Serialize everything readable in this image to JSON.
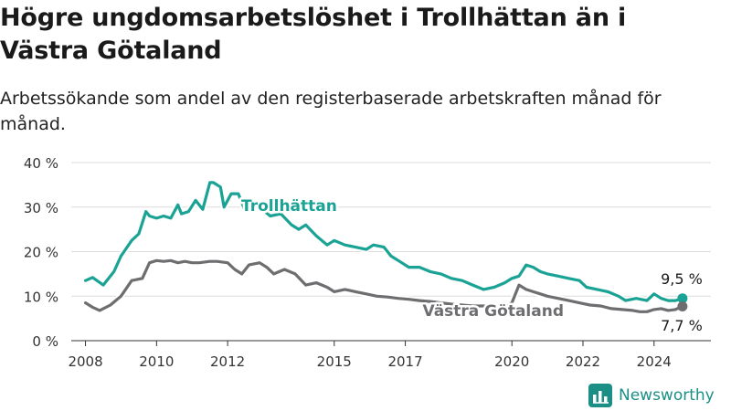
{
  "title": "Högre ungdomsarbetslöshet i Trollhättan än i Västra Götaland",
  "subtitle": "Arbetssökande som andel av den registerbaserade arbetskraften månad för månad.",
  "brand": {
    "name": "Newsworthy",
    "icon": "bar-chart-logo-icon",
    "color": "#1b8f86"
  },
  "chart_data": {
    "type": "line",
    "title": "Högre ungdomsarbetslöshet i Trollhättan än i Västra Götaland",
    "subtitle": "Arbetssökande som andel av den registerbaserade arbetskraften månad för månad.",
    "xlabel": "",
    "ylabel": "",
    "x_ticks": [
      2008,
      2010,
      2012,
      2015,
      2017,
      2020,
      2022,
      2024
    ],
    "x_tick_labels": [
      "2008",
      "2010",
      "2012",
      "2015",
      "2017",
      "2020",
      "2022",
      "2024"
    ],
    "y_ticks": [
      0,
      10,
      20,
      30,
      40
    ],
    "y_tick_labels": [
      "0 %",
      "10 %",
      "20 %",
      "30 %",
      "40 %"
    ],
    "xlim": [
      2007.6,
      2025.6
    ],
    "ylim": [
      0,
      40
    ],
    "grid": true,
    "legend": "direct labels on lines",
    "series": [
      {
        "name": "Trollhättan",
        "color": "#1aa394",
        "label_text": "Trollhättan",
        "end_label": "9,5 %",
        "x": [
          2008.0,
          2008.2,
          2008.5,
          2008.8,
          2009.0,
          2009.3,
          2009.5,
          2009.7,
          2009.8,
          2010.0,
          2010.2,
          2010.4,
          2010.6,
          2010.7,
          2010.9,
          2011.1,
          2011.3,
          2011.5,
          2011.6,
          2011.8,
          2011.9,
          2012.1,
          2012.3,
          2012.5,
          2012.7,
          2012.9,
          2013.2,
          2013.5,
          2013.8,
          2014.0,
          2014.2,
          2014.5,
          2014.8,
          2015.0,
          2015.3,
          2015.6,
          2015.9,
          2016.1,
          2016.4,
          2016.6,
          2016.9,
          2017.1,
          2017.4,
          2017.7,
          2018.0,
          2018.3,
          2018.6,
          2018.9,
          2019.2,
          2019.5,
          2019.8,
          2020.0,
          2020.2,
          2020.4,
          2020.6,
          2020.8,
          2021.0,
          2021.3,
          2021.6,
          2021.9,
          2022.1,
          2022.4,
          2022.7,
          2023.0,
          2023.2,
          2023.5,
          2023.8,
          2024.0,
          2024.2,
          2024.4,
          2024.6,
          2024.8
        ],
        "values": [
          13.5,
          14.2,
          12.5,
          15.5,
          19.0,
          22.5,
          24.0,
          29.0,
          28.0,
          27.5,
          28.0,
          27.5,
          30.5,
          28.5,
          29.0,
          31.5,
          29.5,
          35.5,
          35.5,
          34.5,
          30.0,
          33.0,
          33.0,
          29.0,
          31.5,
          30.0,
          28.0,
          28.5,
          26.0,
          25.0,
          26.0,
          23.5,
          21.5,
          22.5,
          21.5,
          21.0,
          20.5,
          21.5,
          21.0,
          19.0,
          17.5,
          16.5,
          16.5,
          15.5,
          15.0,
          14.0,
          13.5,
          12.5,
          11.5,
          12.0,
          13.0,
          14.0,
          14.5,
          17.0,
          16.5,
          15.5,
          15.0,
          14.5,
          14.0,
          13.5,
          12.0,
          11.5,
          11.0,
          10.0,
          9.0,
          9.5,
          9.0,
          10.5,
          9.5,
          9.0,
          9.0,
          9.5
        ]
      },
      {
        "name": "Västra Götaland",
        "color": "#6e6d70",
        "label_text": "Västra Götaland",
        "end_label": "7,7 %",
        "x": [
          2008.0,
          2008.2,
          2008.4,
          2008.7,
          2009.0,
          2009.3,
          2009.6,
          2009.8,
          2010.0,
          2010.2,
          2010.4,
          2010.6,
          2010.8,
          2011.0,
          2011.2,
          2011.5,
          2011.7,
          2012.0,
          2012.2,
          2012.4,
          2012.6,
          2012.9,
          2013.1,
          2013.3,
          2013.6,
          2013.9,
          2014.2,
          2014.5,
          2014.8,
          2015.0,
          2015.3,
          2015.6,
          2015.9,
          2016.2,
          2016.5,
          2016.8,
          2017.1,
          2017.4,
          2017.7,
          2018.0,
          2018.3,
          2018.6,
          2018.9,
          2019.2,
          2019.5,
          2019.8,
          2020.0,
          2020.2,
          2020.4,
          2020.6,
          2020.8,
          2021.0,
          2021.3,
          2021.6,
          2021.9,
          2022.2,
          2022.5,
          2022.8,
          2023.1,
          2023.4,
          2023.6,
          2023.8,
          2024.0,
          2024.2,
          2024.4,
          2024.6,
          2024.8
        ],
        "values": [
          8.5,
          7.5,
          6.8,
          8.0,
          10.0,
          13.5,
          14.0,
          17.5,
          18.0,
          17.8,
          18.0,
          17.5,
          17.8,
          17.5,
          17.5,
          17.8,
          17.8,
          17.5,
          16.0,
          15.0,
          17.0,
          17.5,
          16.5,
          15.0,
          16.0,
          15.0,
          12.5,
          13.0,
          12.0,
          11.0,
          11.5,
          11.0,
          10.5,
          10.0,
          9.8,
          9.5,
          9.3,
          9.0,
          8.8,
          8.5,
          8.2,
          8.0,
          7.8,
          7.8,
          7.5,
          7.5,
          8.5,
          12.5,
          11.5,
          11.0,
          10.5,
          10.0,
          9.5,
          9.0,
          8.5,
          8.0,
          7.8,
          7.2,
          7.0,
          6.8,
          6.5,
          6.5,
          7.0,
          7.2,
          6.8,
          7.0,
          7.7
        ]
      }
    ]
  }
}
